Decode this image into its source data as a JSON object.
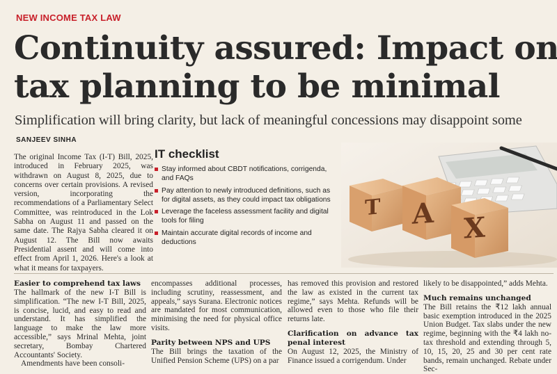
{
  "kicker": "NEW INCOME TAX LAW",
  "headline": {
    "line1": "Continuity assured: Impact on",
    "line2": "tax planning to be minimal"
  },
  "deck": "Simplification will bring clarity, but lack of meaningful concessions may disappoint some",
  "byline": "SANJEEV SINHA",
  "intro": "The original Income Tax (I-T) Bill, 2025, introduced in February 2025, was withdrawn on August 8, 2025, due to concerns over certain provisions. A revised version, incorporating the recommendations of a Parliamentary Select Committee, was reintroduced in the Lok Sabha on August 11 and passed on the same date. The Rajya Sabha cleared it on August 12. The Bill now awaits Presidential assent and will come into effect from April 1, 2026. Here's a look at what it means for taxpayers.",
  "checklist": {
    "title": "IT checklist",
    "items": [
      "Stay informed about CBDT notifications, corrigenda, and FAQs",
      "Pay attention to newly introduced definitions, such as for digital assets, as they could impact tax obligations",
      "Leverage the faceless assessment facility and digital tools for filing",
      "Maintain accurate digital records of income and deductions"
    ]
  },
  "photo": {
    "tiles": [
      "T",
      "A",
      "X"
    ],
    "icon": "tax-blocks-with-calculator-photo"
  },
  "columns": {
    "col1": {
      "heading": "Easier to comprehend tax laws",
      "text": "The hallmark of the new I-T Bill is simplification. “The new I-T Bill, 2025, is concise, lucid, and easy to read and understand. It has simplified the language to make the law more accessible,” says Mrinal Mehta, joint secretary, Bombay Chartered Accountants' Society.",
      "tail": "Amendments have been consoli-"
    },
    "col2": {
      "text": "encompasses additional processes, including scrutiny, reassessment, and appeals,” says Surana. Electronic notices are mandated for most communication, minimising the need for physical office visits.",
      "heading": "Parity between NPS and UPS",
      "tail": "The Bill brings the taxation of the Unified Pension Scheme (UPS) on a par"
    },
    "col3": {
      "text": "has removed this provision and restored the law as existed in the current tax regime,” says Mehta. Refunds will be allowed even to those who file their returns late.",
      "heading": "Clarification on advance tax penal interest",
      "tail": "On August 12, 2025, the Ministry of Finance issued a corrigendum. Under"
    },
    "col4": {
      "text": "likely to be disappointed,” adds Mehta.",
      "heading": "Much remains unchanged",
      "tail": "The Bill retains the ₹12 lakh annual basic exemption introduced in the 2025 Union Budget. Tax slabs under the new regime, beginning with the ₹4 lakh no-tax threshold and extending through 5, 10, 15, 20, 25 and 30 per cent rate bands, remain unchanged. Rebate under Sec-"
    }
  },
  "colors": {
    "accent": "#c8202a",
    "paper": "#f4efe6"
  }
}
